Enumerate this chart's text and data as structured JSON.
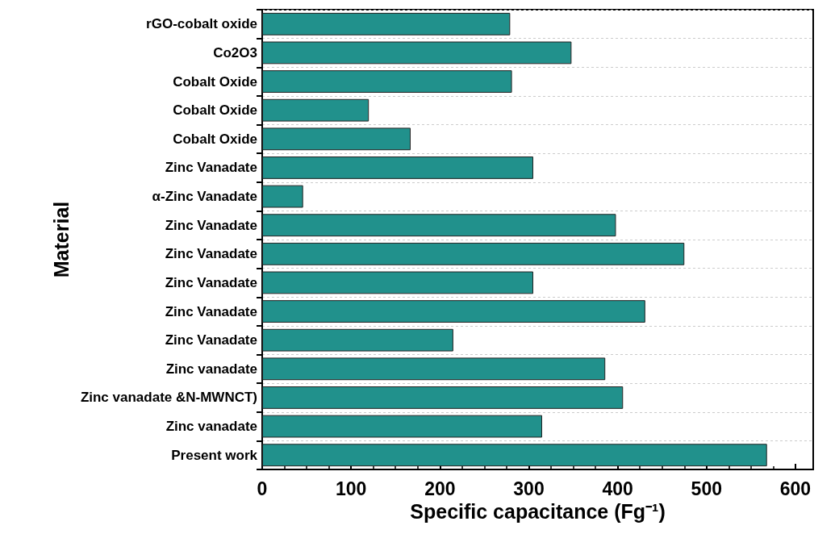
{
  "chart_data": {
    "type": "bar",
    "orientation": "horizontal",
    "xlabel": "Specific capacitance (Fg⁻¹)",
    "ylabel": "Material",
    "categories": [
      "rGO-cobalt oxide",
      "Co2O3",
      "Cobalt Oxide",
      "Cobalt Oxide",
      "Cobalt Oxide",
      "Zinc Vanadate",
      "α-Zinc Vanadate",
      "Zinc Vanadate",
      "Zinc Vanadate",
      "Zinc Vanadate",
      "Zinc Vanadate",
      "Zinc Vanadate",
      "Zinc vanadate",
      "Zinc vanadate &N-MWNCT)",
      "Zinc vanadate",
      "Present work"
    ],
    "values": [
      279,
      348,
      281,
      120,
      167,
      305,
      46,
      398,
      475,
      305,
      431,
      215,
      386,
      406,
      315,
      568
    ],
    "color": "#21918c",
    "xlim": [
      0,
      620
    ],
    "xticks": [
      0,
      100,
      200,
      300,
      400,
      500,
      600
    ],
    "grid": "y"
  }
}
